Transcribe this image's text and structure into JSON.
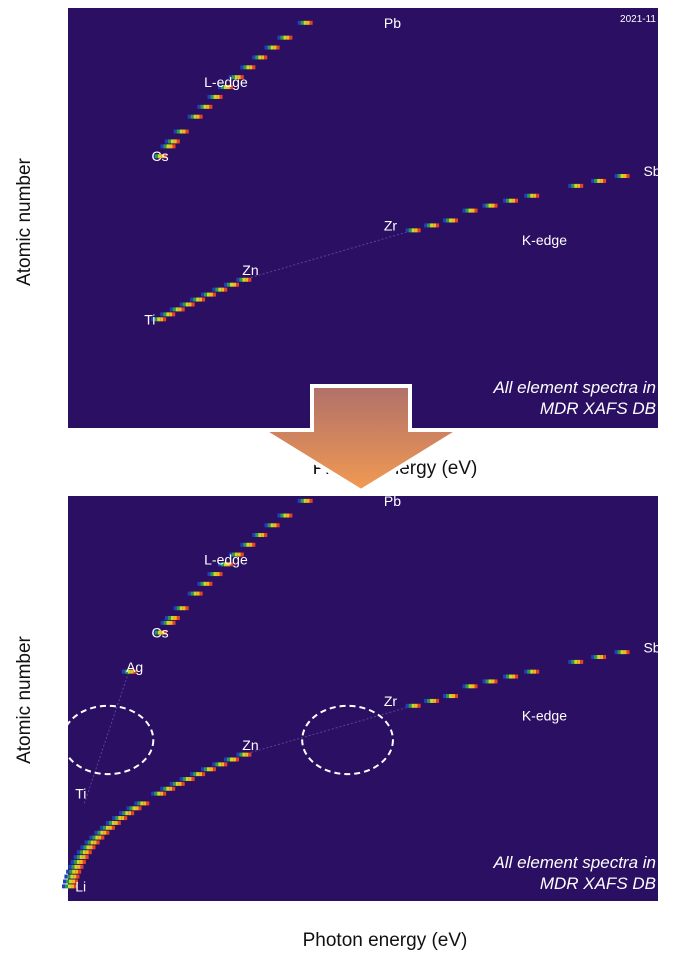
{
  "colors": {
    "background": "#2b0f63",
    "arrow_top": "#b0706a",
    "arrow_bottom": "#f29a52",
    "outline": "#ffffff"
  },
  "chart_data": [
    {
      "type": "heatmap",
      "xlabel": "Photon energy (eV)",
      "ylabel": "Atomic number",
      "xlim": [
        0,
        32500
      ],
      "ylim": [
        0,
        85
      ],
      "x_ticks": [
        "5000",
        "10000",
        "15000",
        "20000",
        "25000",
        "30000"
      ],
      "y_ticks": [
        "5",
        "10",
        "15",
        "20",
        "25",
        "30",
        "35",
        "40",
        "45",
        "50",
        "55",
        "60",
        "65",
        "70",
        "75",
        "80"
      ],
      "date_label": "2021-11",
      "annotation": [
        "All element spectra in",
        "MDR XAFS DB"
      ],
      "element_labels": [
        {
          "text": "Pb",
          "x": 17400,
          "y": 82
        },
        {
          "text": "L-edge",
          "x": 7500,
          "y": 70
        },
        {
          "text": "Cs",
          "x": 4600,
          "y": 55
        },
        {
          "text": "Sb",
          "x": 31700,
          "y": 52
        },
        {
          "text": "Zr",
          "x": 17400,
          "y": 41
        },
        {
          "text": "K-edge",
          "x": 25000,
          "y": 38
        },
        {
          "text": "Zn",
          "x": 9600,
          "y": 32
        },
        {
          "text": "Ti",
          "x": 4200,
          "y": 22
        }
      ],
      "marks": [
        {
          "x": 4966,
          "y": 22
        },
        {
          "x": 5465,
          "y": 23
        },
        {
          "x": 5989,
          "y": 24
        },
        {
          "x": 6539,
          "y": 25
        },
        {
          "x": 7112,
          "y": 26
        },
        {
          "x": 7709,
          "y": 27
        },
        {
          "x": 8333,
          "y": 28
        },
        {
          "x": 8979,
          "y": 29
        },
        {
          "x": 9659,
          "y": 30
        },
        {
          "x": 18986,
          "y": 40
        },
        {
          "x": 20000,
          "y": 41
        },
        {
          "x": 21044,
          "y": 42
        },
        {
          "x": 22117,
          "y": 44
        },
        {
          "x": 23220,
          "y": 45
        },
        {
          "x": 24350,
          "y": 46
        },
        {
          "x": 25514,
          "y": 47
        },
        {
          "x": 27940,
          "y": 49
        },
        {
          "x": 29200,
          "y": 50
        },
        {
          "x": 30491,
          "y": 51
        },
        {
          "x": 5012,
          "y": 55
        },
        {
          "x": 5483,
          "y": 57
        },
        {
          "x": 5723,
          "y": 58
        },
        {
          "x": 6208,
          "y": 60
        },
        {
          "x": 6977,
          "y": 63
        },
        {
          "x": 7514,
          "y": 65
        },
        {
          "x": 8071,
          "y": 67
        },
        {
          "x": 8648,
          "y": 69
        },
        {
          "x": 9244,
          "y": 71
        },
        {
          "x": 9881,
          "y": 73
        },
        {
          "x": 10535,
          "y": 75
        },
        {
          "x": 11215,
          "y": 77
        },
        {
          "x": 11919,
          "y": 79
        },
        {
          "x": 13035,
          "y": 82
        }
      ]
    },
    {
      "type": "heatmap",
      "xlabel": "Photon energy (eV)",
      "ylabel": "Atomic number",
      "xlim": [
        0,
        32500
      ],
      "ylim": [
        0,
        83
      ],
      "x_ticks": [
        "5000",
        "10000",
        "15000",
        "20000",
        "25000",
        "30000"
      ],
      "y_ticks": [
        "5",
        "10",
        "15",
        "20",
        "25",
        "30",
        "35",
        "40",
        "45",
        "50",
        "55",
        "60",
        "65",
        "70",
        "75",
        "80"
      ],
      "annotation": [
        "All element spectra in",
        "MDR XAFS DB"
      ],
      "element_labels": [
        {
          "text": "Pb",
          "x": 17400,
          "y": 82
        },
        {
          "text": "L-edge",
          "x": 7500,
          "y": 70
        },
        {
          "text": "Cs",
          "x": 4600,
          "y": 55
        },
        {
          "text": "Ag",
          "x": 3200,
          "y": 48
        },
        {
          "text": "Sb",
          "x": 31700,
          "y": 52
        },
        {
          "text": "Zr",
          "x": 17400,
          "y": 41
        },
        {
          "text": "K-edge",
          "x": 25000,
          "y": 38
        },
        {
          "text": "Zn",
          "x": 9600,
          "y": 32
        },
        {
          "text": "Ti",
          "x": 400,
          "y": 22
        },
        {
          "text": "Li",
          "x": 400,
          "y": 3
        }
      ],
      "highlight_circles": [
        {
          "x": 2200,
          "y": 33,
          "rx": 2500,
          "ry": 7
        },
        {
          "x": 15400,
          "y": 33,
          "rx": 2500,
          "ry": 7
        }
      ],
      "marks": [
        {
          "x": 55,
          "y": 3
        },
        {
          "x": 111,
          "y": 4
        },
        {
          "x": 188,
          "y": 5
        },
        {
          "x": 284,
          "y": 6
        },
        {
          "x": 410,
          "y": 7
        },
        {
          "x": 543,
          "y": 8
        },
        {
          "x": 697,
          "y": 9
        },
        {
          "x": 870,
          "y": 10
        },
        {
          "x": 1072,
          "y": 11
        },
        {
          "x": 1305,
          "y": 12
        },
        {
          "x": 1560,
          "y": 13
        },
        {
          "x": 1839,
          "y": 14
        },
        {
          "x": 2145,
          "y": 15
        },
        {
          "x": 2472,
          "y": 16
        },
        {
          "x": 2822,
          "y": 17
        },
        {
          "x": 3206,
          "y": 18
        },
        {
          "x": 3608,
          "y": 19
        },
        {
          "x": 4038,
          "y": 20
        },
        {
          "x": 4966,
          "y": 22
        },
        {
          "x": 5465,
          "y": 23
        },
        {
          "x": 5989,
          "y": 24
        },
        {
          "x": 6539,
          "y": 25
        },
        {
          "x": 7112,
          "y": 26
        },
        {
          "x": 7709,
          "y": 27
        },
        {
          "x": 8333,
          "y": 28
        },
        {
          "x": 8979,
          "y": 29
        },
        {
          "x": 9659,
          "y": 30
        },
        {
          "x": 18986,
          "y": 40
        },
        {
          "x": 20000,
          "y": 41
        },
        {
          "x": 21044,
          "y": 42
        },
        {
          "x": 22117,
          "y": 44
        },
        {
          "x": 23220,
          "y": 45
        },
        {
          "x": 24350,
          "y": 46
        },
        {
          "x": 25514,
          "y": 47
        },
        {
          "x": 27940,
          "y": 49
        },
        {
          "x": 29200,
          "y": 50
        },
        {
          "x": 30491,
          "y": 51
        },
        {
          "x": 3351,
          "y": 47
        },
        {
          "x": 5012,
          "y": 55
        },
        {
          "x": 5483,
          "y": 57
        },
        {
          "x": 5723,
          "y": 58
        },
        {
          "x": 6208,
          "y": 60
        },
        {
          "x": 6977,
          "y": 63
        },
        {
          "x": 7514,
          "y": 65
        },
        {
          "x": 8071,
          "y": 67
        },
        {
          "x": 8648,
          "y": 69
        },
        {
          "x": 9244,
          "y": 71
        },
        {
          "x": 9881,
          "y": 73
        },
        {
          "x": 10535,
          "y": 75
        },
        {
          "x": 11215,
          "y": 77
        },
        {
          "x": 11919,
          "y": 79
        },
        {
          "x": 13035,
          "y": 82
        }
      ]
    }
  ]
}
